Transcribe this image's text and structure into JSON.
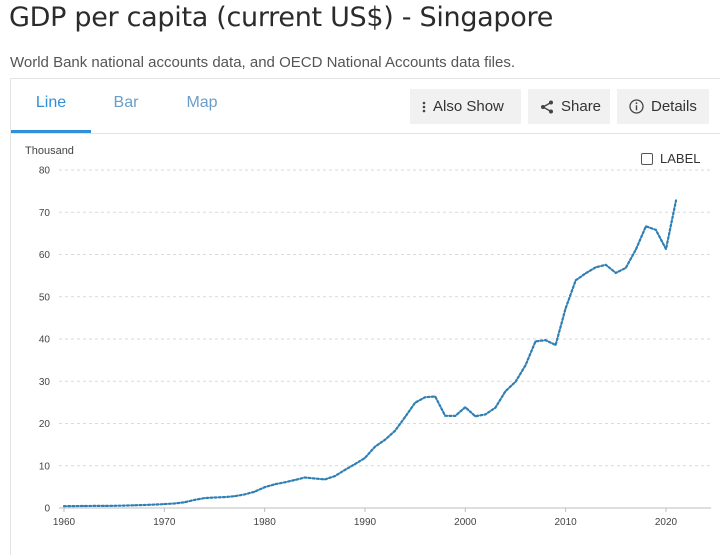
{
  "page": {
    "title": "GDP per capita (current US$) - Singapore",
    "subtitle": "World Bank national accounts data, and OECD National Accounts data files."
  },
  "tabs": [
    {
      "label": "Line",
      "active": true
    },
    {
      "label": "Bar",
      "active": false
    },
    {
      "label": "Map",
      "active": false
    }
  ],
  "toolbar": {
    "also_show": {
      "label": "Also Show",
      "icon": "vertical-dots-icon"
    },
    "share": {
      "label": "Share",
      "icon": "share-icon"
    },
    "details": {
      "label": "Details",
      "icon": "info-circle-icon"
    }
  },
  "chart_options": {
    "label_toggle": "LABEL",
    "label_checked": false
  },
  "colors": {
    "accent": "#2f8fd8",
    "line": "#2f7fb5",
    "tab_inactive": "#6a9ec9"
  },
  "chart_data": {
    "type": "line",
    "title": "",
    "ylabel": "Thousand",
    "xlabel": "",
    "ylim": [
      0,
      80
    ],
    "xlim": [
      1960,
      2021
    ],
    "yticks": [
      0,
      10,
      20,
      30,
      40,
      50,
      60,
      70,
      80
    ],
    "xticks": [
      1960,
      1970,
      1980,
      1990,
      2000,
      2010,
      2020
    ],
    "grid": true,
    "line_style": "dotted",
    "series": [
      {
        "x": [
          1960,
          1961,
          1962,
          1963,
          1964,
          1965,
          1966,
          1967,
          1968,
          1969,
          1970,
          1971,
          1972,
          1973,
          1974,
          1975,
          1976,
          1977,
          1978,
          1979,
          1980,
          1981,
          1982,
          1983,
          1984,
          1985,
          1986,
          1987,
          1988,
          1989,
          1990,
          1991,
          1992,
          1993,
          1994,
          1995,
          1996,
          1997,
          1998,
          1999,
          2000,
          2001,
          2002,
          2003,
          2004,
          2005,
          2006,
          2007,
          2008,
          2009,
          2010,
          2011,
          2012,
          2013,
          2014,
          2015,
          2016,
          2017,
          2018,
          2019,
          2020,
          2021
        ],
        "y": [
          0.43,
          0.45,
          0.47,
          0.5,
          0.49,
          0.52,
          0.57,
          0.63,
          0.71,
          0.81,
          0.93,
          1.07,
          1.36,
          1.92,
          2.34,
          2.49,
          2.57,
          2.8,
          3.23,
          3.86,
          4.93,
          5.6,
          6.08,
          6.63,
          7.23,
          6.99,
          6.78,
          7.54,
          9.02,
          10.39,
          11.86,
          14.5,
          16.14,
          18.29,
          21.55,
          24.92,
          26.23,
          26.38,
          21.83,
          21.8,
          23.85,
          21.7,
          22.16,
          23.73,
          27.61,
          29.87,
          33.77,
          39.43,
          39.72,
          38.58,
          47.24,
          53.89,
          55.55,
          56.97,
          57.56,
          55.65,
          56.83,
          61.18,
          66.68,
          65.83,
          61.27,
          72.79
        ]
      }
    ]
  }
}
